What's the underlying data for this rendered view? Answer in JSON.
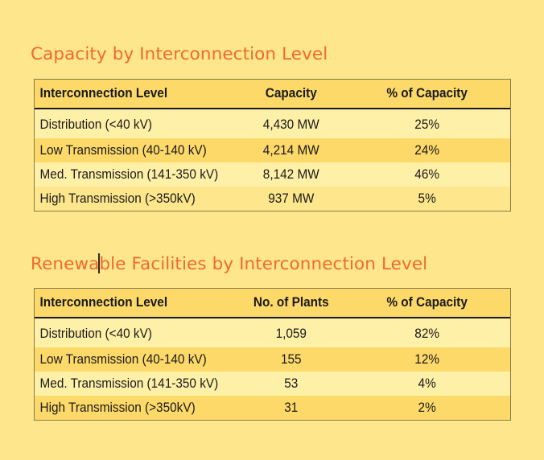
{
  "section1": {
    "title": "Capacity by Interconnection Level",
    "headers": [
      "Interconnection Level",
      "Capacity",
      "% of Capacity"
    ],
    "rows": [
      {
        "level": "Distribution (<40 kV)",
        "value": "4,430 MW",
        "percent": "25%"
      },
      {
        "level": "Low Transmission (40-140 kV)",
        "value": "4,214 MW",
        "percent": "24%"
      },
      {
        "level": "Med. Transmission (141-350 kV)",
        "value": "8,142 MW",
        "percent": "46%"
      },
      {
        "level": "High Transmission (>350kV)",
        "value": "937 MW",
        "percent": "5%"
      }
    ]
  },
  "section2": {
    "title_before_cursor": "Renewa",
    "title_after_cursor": "ble Facilities by Interconnection Level",
    "headers": [
      "Interconnection Level",
      "No. of Plants",
      "% of Capacity"
    ],
    "rows": [
      {
        "level": "Distribution (<40 kV)",
        "value": "1,059",
        "percent": "82%"
      },
      {
        "level": "Low Transmission (40-140 kV)",
        "value": "155",
        "percent": "12%"
      },
      {
        "level": "Med. Transmission (141-350 kV)",
        "value": "53",
        "percent": "4%"
      },
      {
        "level": "High Transmission (>350kV)",
        "value": "31",
        "percent": "2%"
      }
    ]
  },
  "colors": {
    "background": "#fde68c",
    "title": "#ef6a2e",
    "header_band": "#fdd96a",
    "light_row": "#fff0a8"
  }
}
